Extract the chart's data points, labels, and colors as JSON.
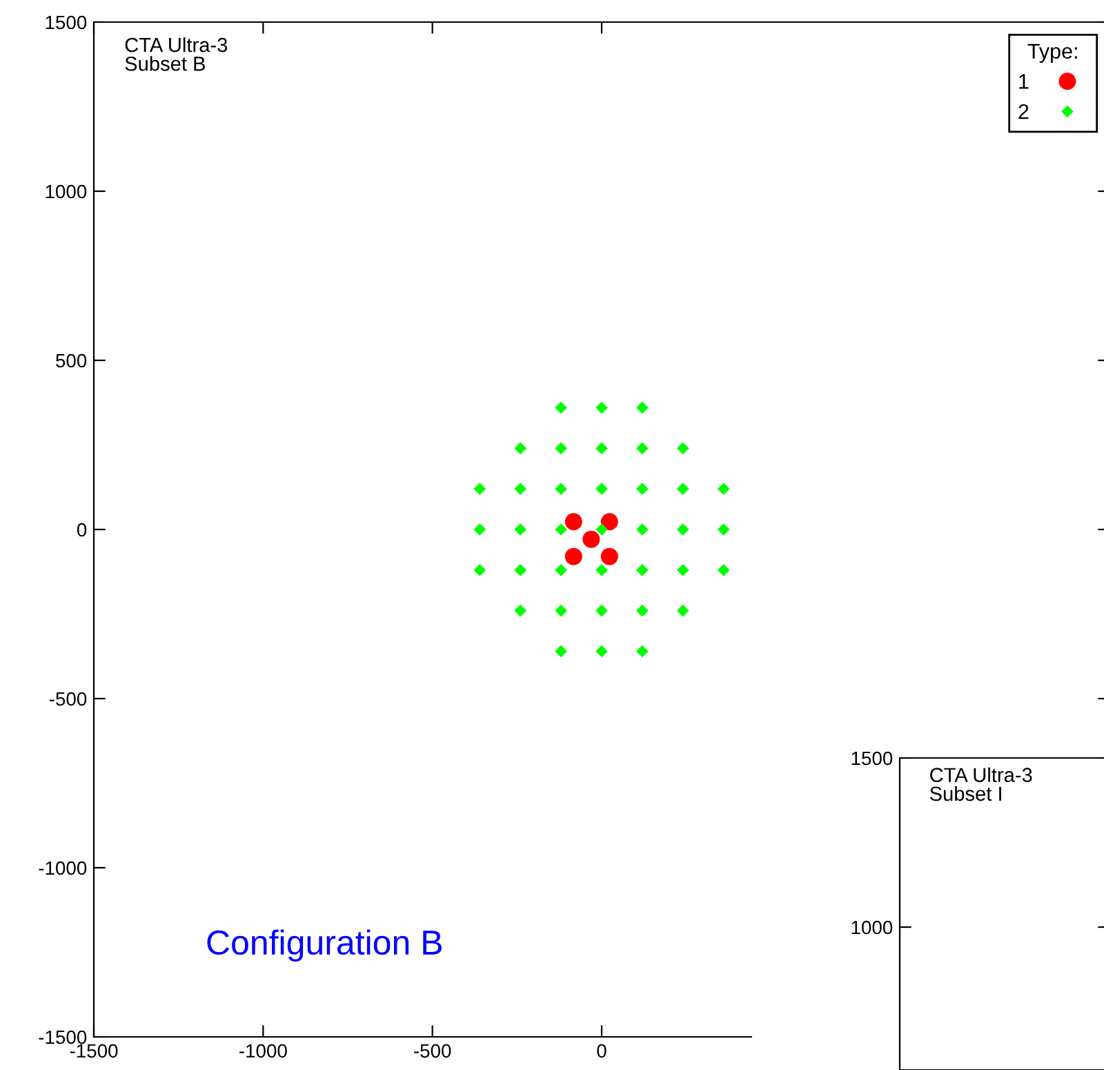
{
  "chart_data": [
    {
      "type": "scatter",
      "xlim": [
        -1500,
        1500
      ],
      "ylim": [
        -1500,
        1500
      ],
      "xticks": [
        -1500,
        -1000,
        -500,
        0
      ],
      "yticks": [
        -1500,
        -1000,
        -500,
        0,
        500,
        1000,
        1500
      ],
      "legend": "top right",
      "legend_title": "Type:",
      "grid": false,
      "annotations": [
        "CTA Ultra-3\nSubset B",
        "Configuration B"
      ],
      "series": [
        {
          "name": "1",
          "color": "#ff0000",
          "marker": "circle",
          "x": [
            -83,
            23,
            -31,
            -83,
            23
          ],
          "values": [
            23,
            23,
            -29,
            -80,
            -80
          ]
        },
        {
          "name": "2",
          "color": "#00ff00",
          "marker": "diamond",
          "x": [
            -120,
            0,
            120,
            -240,
            -120,
            0,
            120,
            240,
            -360,
            -240,
            -120,
            0,
            120,
            240,
            360,
            -360,
            -240,
            -120,
            0,
            120,
            240,
            360,
            -360,
            -240,
            -120,
            0,
            120,
            240,
            360,
            -240,
            -120,
            0,
            120,
            240,
            -120,
            0,
            120
          ],
          "values": [
            360,
            360,
            360,
            240,
            240,
            240,
            240,
            240,
            120,
            120,
            120,
            120,
            120,
            120,
            120,
            0,
            0,
            0,
            0,
            0,
            0,
            0,
            -120,
            -120,
            -120,
            -120,
            -120,
            -120,
            -120,
            -240,
            -240,
            -240,
            -240,
            -240,
            -360,
            -360,
            -360
          ]
        }
      ]
    },
    {
      "type": "other",
      "annotations": [
        "CTA Ultra-3\nSubset I",
        "1500",
        "1000"
      ]
    }
  ]
}
